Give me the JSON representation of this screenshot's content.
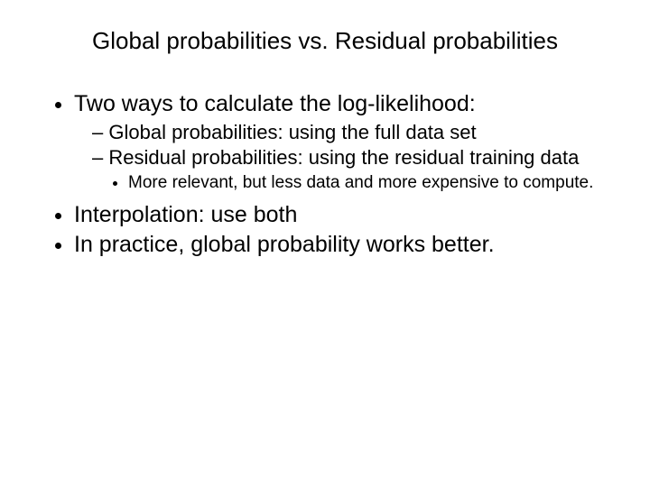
{
  "title": "Global probabilities vs. Residual probabilities",
  "bullets": {
    "b1": "Two ways to calculate the log-likelihood:",
    "b1_sub1": "Global probabilities: using the full data set",
    "b1_sub2": "Residual probabilities: using the residual training data",
    "b1_sub2_sub1": "More relevant, but less data and more expensive to compute.",
    "b2": "Interpolation: use both",
    "b3": "In practice, global probability works better."
  },
  "colors": {
    "background": "#ffffff",
    "text": "#000000"
  },
  "typography": {
    "title_fontsize": 26,
    "level1_fontsize": 25,
    "level2_fontsize": 22,
    "level3_fontsize": 19,
    "font_family": "Arial"
  }
}
